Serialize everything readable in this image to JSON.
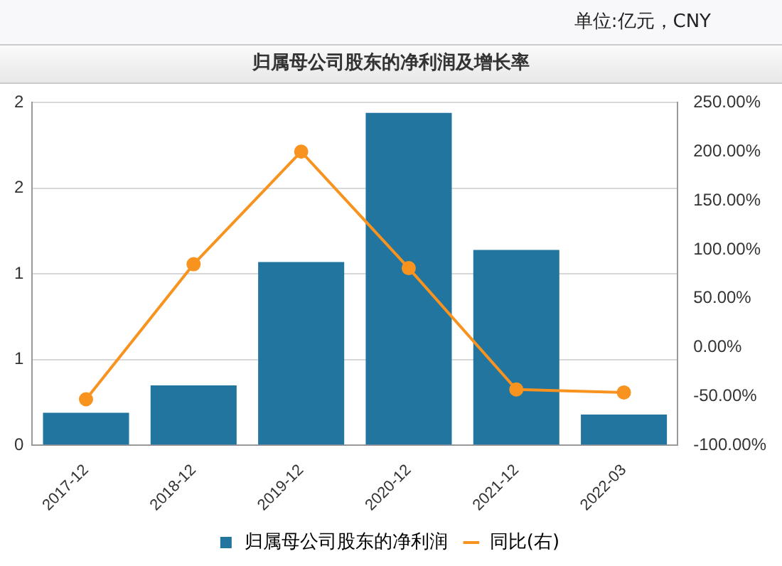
{
  "chart_data": {
    "type": "bar",
    "title": "归属母公司股东的净利润及增长率",
    "annotations": [
      "单位:亿元，CNY"
    ],
    "categories": [
      "2017-12",
      "2018-12",
      "2019-12",
      "2020-12",
      "2021-12",
      "2022-03"
    ],
    "series": [
      {
        "name": "归属母公司股东的净利润",
        "color": "#21759f",
        "values": [
          0.19,
          0.35,
          1.07,
          1.94,
          1.14,
          0.18
        ]
      },
      {
        "name": "同比(右)",
        "type": "line",
        "axis": "y2",
        "color": "#f7931e",
        "marker": "circle",
        "values": [
          -53,
          85,
          200,
          81,
          -43,
          -46
        ]
      }
    ],
    "ylim": [
      0,
      2
    ],
    "yticks": [
      0,
      {
        "value": 0.5,
        "label": "1"
      },
      1,
      {
        "value": 1.5,
        "label": "2"
      },
      2
    ],
    "y2lim": [
      -100,
      250
    ],
    "y2ticks": [
      {
        "value": -100,
        "label": "-100.00%"
      },
      {
        "value": -50,
        "label": "-50.00%"
      },
      {
        "value": 0,
        "label": "0.00%"
      },
      {
        "value": 50,
        "label": "50.00%"
      },
      {
        "value": 100,
        "label": "100.00%"
      },
      {
        "value": 150,
        "label": "150.00%"
      },
      {
        "value": 200,
        "label": "200.00%"
      },
      {
        "value": 250,
        "label": "250.00%"
      }
    ],
    "grid": "y",
    "legend": "bottom"
  }
}
